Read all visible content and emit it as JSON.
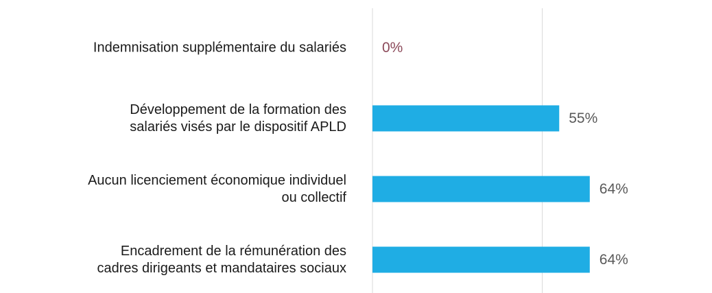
{
  "chart_data": {
    "type": "bar",
    "orientation": "horizontal",
    "categories": [
      "Indemnisation supplémentaire du salariés",
      "Développement de la formation des\nsalariés visés par le dispositif APLD",
      "Aucun licenciement économique individuel\nou collectif",
      "Encadrement de la rémunération des\ncadres dirigeants et mandataires sociaux"
    ],
    "values": [
      0,
      55,
      64,
      64
    ],
    "value_labels": [
      "0%",
      "55%",
      "64%",
      "64%"
    ],
    "value_label_colors": [
      "#8c4a5a",
      "#595959",
      "#595959",
      "#595959"
    ],
    "color": "#1fade4",
    "xlim": [
      0,
      100
    ],
    "xticks": [
      0,
      50
    ],
    "grid": true
  }
}
